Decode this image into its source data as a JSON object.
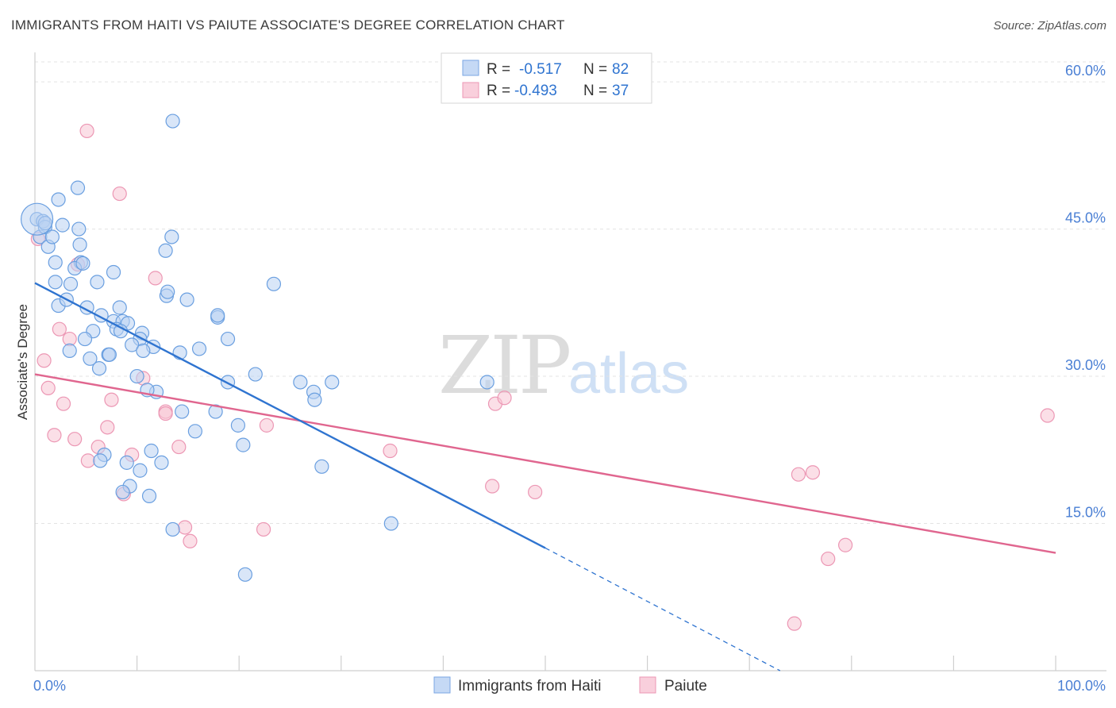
{
  "title": "IMMIGRANTS FROM HAITI VS PAIUTE ASSOCIATE'S DEGREE CORRELATION CHART",
  "source": "Source: ZipAtlas.com",
  "watermark": {
    "zip": "ZIP",
    "atlas": "atlas"
  },
  "colors": {
    "blue": "#6a9fe0",
    "blue_line": "#2f74d0",
    "pink": "#eb8fae",
    "pink_line": "#e0668f",
    "axis_text": "#4a7fd4"
  },
  "legend_top": {
    "rows": [
      {
        "r_label": "R = ",
        "r_value": "-0.517",
        "n_label": "N = ",
        "n_value": "82"
      },
      {
        "r_label": "R = ",
        "r_value": "-0.493",
        "n_label": "N = ",
        "n_value": "37"
      }
    ]
  },
  "legend_bottom": {
    "series1": "Immigrants from Haiti",
    "series2": "Paiute"
  },
  "chart_data": {
    "type": "scatter",
    "title": "IMMIGRANTS FROM HAITI VS PAIUTE ASSOCIATE'S DEGREE CORRELATION CHART",
    "xlabel": "",
    "ylabel": "Associate's Degree",
    "xlim": [
      0,
      100
    ],
    "ylim": [
      0,
      63
    ],
    "x_tick_labels": [
      "0.0%",
      "100.0%"
    ],
    "y_ticks": [
      15,
      30,
      45,
      60
    ],
    "y_tick_labels": [
      "15.0%",
      "30.0%",
      "45.0%",
      "60.0%"
    ],
    "series": [
      {
        "name": "Immigrants from Haiti",
        "r": -0.517,
        "n": 82,
        "trend": {
          "x0": 0,
          "y0": 39.5,
          "x1": 50,
          "y1": 12.5,
          "dash_x1": 73,
          "dash_y1": 0
        },
        "points": [
          [
            0.2,
            46
          ],
          [
            0.5,
            44.2
          ],
          [
            0.8,
            45.8
          ],
          [
            1.0,
            45.2
          ],
          [
            1.3,
            43.2
          ],
          [
            1.7,
            44.2
          ],
          [
            2.3,
            48
          ],
          [
            2.7,
            45.4
          ],
          [
            4.2,
            49.2
          ],
          [
            4.3,
            45
          ],
          [
            4.4,
            43.4
          ],
          [
            4.5,
            41.6
          ],
          [
            3.9,
            41
          ],
          [
            2.0,
            41.6
          ],
          [
            2.0,
            39.6
          ],
          [
            3.5,
            39.4
          ],
          [
            6.1,
            39.6
          ],
          [
            7.7,
            40.6
          ],
          [
            4.7,
            41.5
          ],
          [
            2.3,
            37.2
          ],
          [
            3.1,
            37.8
          ],
          [
            5.1,
            37
          ],
          [
            6.5,
            36.2
          ],
          [
            7.7,
            35.6
          ],
          [
            8.3,
            37
          ],
          [
            8.6,
            35.6
          ],
          [
            9.1,
            35.4
          ],
          [
            8.0,
            34.8
          ],
          [
            10.5,
            34.4
          ],
          [
            5.7,
            34.6
          ],
          [
            4.9,
            33.8
          ],
          [
            8.4,
            34.6
          ],
          [
            10.3,
            33.8
          ],
          [
            9.5,
            33.2
          ],
          [
            11.6,
            33
          ],
          [
            3.4,
            32.6
          ],
          [
            10.6,
            32.6
          ],
          [
            7.2,
            32.2
          ],
          [
            7.3,
            32.2
          ],
          [
            5.4,
            31.8
          ],
          [
            14.2,
            32.4
          ],
          [
            16.1,
            32.8
          ],
          [
            6.3,
            30.8
          ],
          [
            10.0,
            30
          ],
          [
            11.9,
            28.4
          ],
          [
            11.0,
            28.6
          ],
          [
            14.4,
            26.4
          ],
          [
            17.7,
            26.4
          ],
          [
            18.9,
            29.4
          ],
          [
            21.6,
            30.2
          ],
          [
            26.0,
            29.4
          ],
          [
            27.3,
            28.4
          ],
          [
            27.4,
            27.6
          ],
          [
            29.1,
            29.4
          ],
          [
            44.3,
            29.4
          ],
          [
            15.7,
            24.4
          ],
          [
            19.9,
            25
          ],
          [
            20.4,
            23
          ],
          [
            11.4,
            22.4
          ],
          [
            6.8,
            22
          ],
          [
            9.0,
            21.2
          ],
          [
            12.4,
            21.2
          ],
          [
            10.3,
            20.4
          ],
          [
            9.3,
            18.8
          ],
          [
            8.6,
            18.2
          ],
          [
            11.2,
            17.8
          ],
          [
            13.5,
            14.4
          ],
          [
            34.9,
            15
          ],
          [
            20.6,
            9.8
          ],
          [
            28.1,
            20.8
          ],
          [
            6.4,
            21.4
          ],
          [
            17.9,
            36
          ],
          [
            18.9,
            33.8
          ],
          [
            14.9,
            37.8
          ],
          [
            12.8,
            42.8
          ],
          [
            13.4,
            44.2
          ],
          [
            12.9,
            38.2
          ],
          [
            13.0,
            38.6
          ],
          [
            23.4,
            39.4
          ],
          [
            17.9,
            36.2
          ],
          [
            13.5,
            56
          ],
          [
            1.0,
            45.6
          ]
        ]
      },
      {
        "name": "Paiute",
        "r": -0.493,
        "n": 37,
        "trend": {
          "x0": 0,
          "y0": 30.2,
          "x1": 100,
          "y1": 12
        },
        "points": [
          [
            0.3,
            44
          ],
          [
            5.1,
            55
          ],
          [
            8.3,
            48.6
          ],
          [
            4.2,
            41.4
          ],
          [
            11.8,
            40
          ],
          [
            2.4,
            34.8
          ],
          [
            3.4,
            33.8
          ],
          [
            0.9,
            31.6
          ],
          [
            1.3,
            28.8
          ],
          [
            10.6,
            29.8
          ],
          [
            2.8,
            27.2
          ],
          [
            7.5,
            27.6
          ],
          [
            12.8,
            26.4
          ],
          [
            12.8,
            26.2
          ],
          [
            7.1,
            24.8
          ],
          [
            22.7,
            25
          ],
          [
            1.9,
            24
          ],
          [
            3.9,
            23.6
          ],
          [
            6.2,
            22.8
          ],
          [
            14.1,
            22.8
          ],
          [
            9.5,
            22
          ],
          [
            5.2,
            21.4
          ],
          [
            34.8,
            22.4
          ],
          [
            45.1,
            27.2
          ],
          [
            46.0,
            27.8
          ],
          [
            44.8,
            18.8
          ],
          [
            49.0,
            18.2
          ],
          [
            8.7,
            18
          ],
          [
            14.7,
            14.6
          ],
          [
            15.2,
            13.2
          ],
          [
            22.4,
            14.4
          ],
          [
            74.8,
            20
          ],
          [
            76.2,
            20.2
          ],
          [
            79.4,
            12.8
          ],
          [
            77.7,
            11.4
          ],
          [
            74.4,
            4.8
          ],
          [
            99.2,
            26
          ]
        ]
      }
    ]
  }
}
